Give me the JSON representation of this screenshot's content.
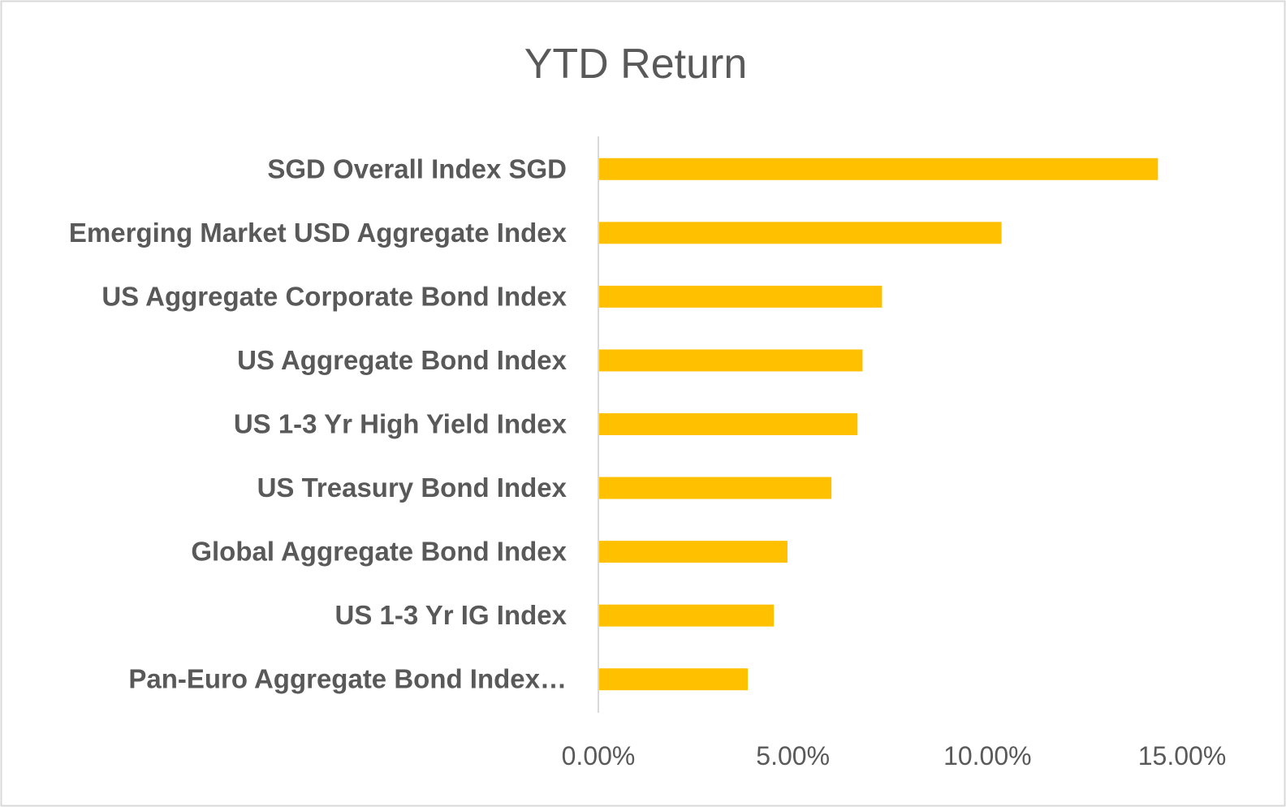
{
  "chart_data": {
    "type": "bar",
    "orientation": "horizontal",
    "title": "YTD Return",
    "xlabel": "",
    "ylabel": "",
    "categories": [
      "SGD Overall Index SGD",
      "Emerging Market USD Aggregate Index",
      "US Aggregate Corporate Bond Index",
      "US Aggregate Bond Index",
      "US 1-3 Yr High Yield Index",
      "US Treasury Bond Index",
      "Global Aggregate Bond Index",
      "US 1-3 Yr IG Index",
      "Pan-Euro Aggregate Bond Index…"
    ],
    "values": [
      14.38,
      10.36,
      7.29,
      6.79,
      6.66,
      5.99,
      4.86,
      4.51,
      3.84
    ],
    "value_unit": "%",
    "xlim": [
      0,
      15
    ],
    "xticks": [
      0,
      5,
      10,
      15
    ],
    "xtick_labels": [
      "0.00%",
      "5.00%",
      "10.00%",
      "15.00%"
    ],
    "grid": false,
    "legend": "none",
    "bar_color": "#FFC000"
  }
}
